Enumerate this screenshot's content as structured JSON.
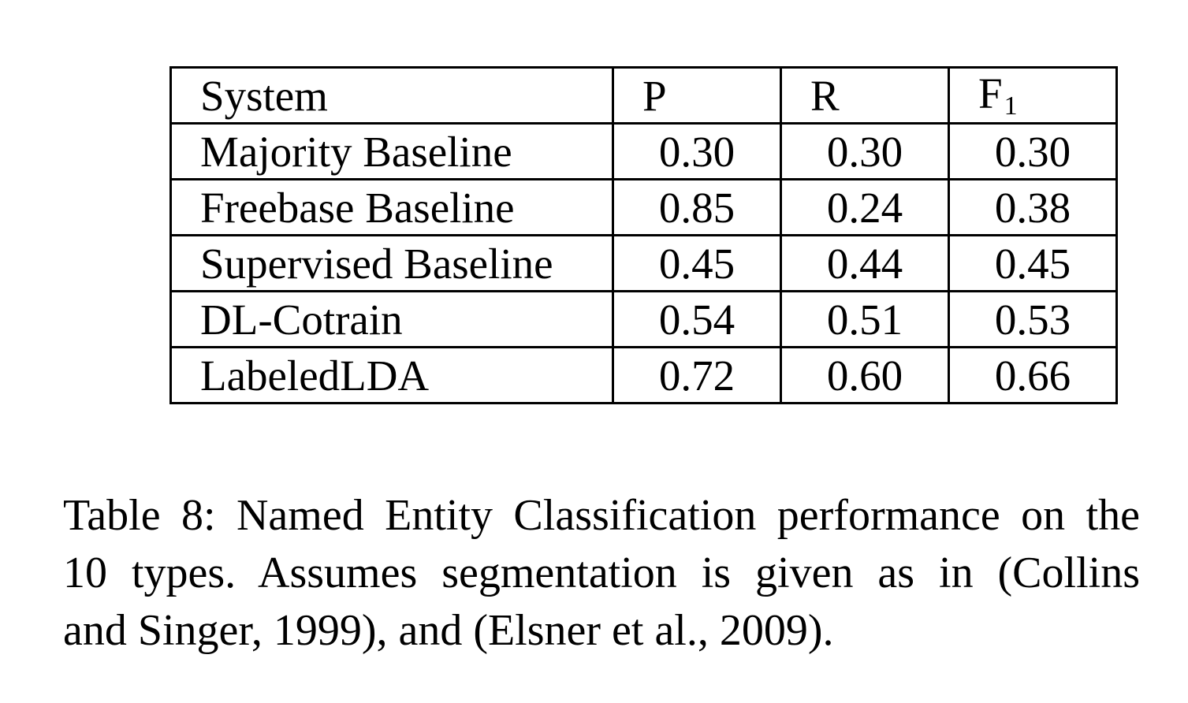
{
  "table": {
    "headers": {
      "system": "System",
      "p": "P",
      "r": "R",
      "f": "F",
      "f_sub": "1"
    },
    "rows": [
      {
        "system": "Majority Baseline",
        "p": "0.30",
        "r": "0.30",
        "f": "0.30"
      },
      {
        "system": "Freebase Baseline",
        "p": "0.85",
        "r": "0.24",
        "f": "0.38"
      },
      {
        "system": "Supervised Baseline",
        "p": "0.45",
        "r": "0.44",
        "f": "0.45"
      },
      {
        "system": "DL-Cotrain",
        "p": "0.54",
        "r": "0.51",
        "f": "0.53"
      },
      {
        "system": "LabeledLDA",
        "p": "0.72",
        "r": "0.60",
        "f": "0.66"
      }
    ]
  },
  "caption": {
    "line1": "Table 8: Named Entity Classification performance on the",
    "line2": "10 types.  Assumes segmentation is given as in (Collins",
    "line3": "and Singer, 1999), and (Elsner et al., 2009)."
  }
}
